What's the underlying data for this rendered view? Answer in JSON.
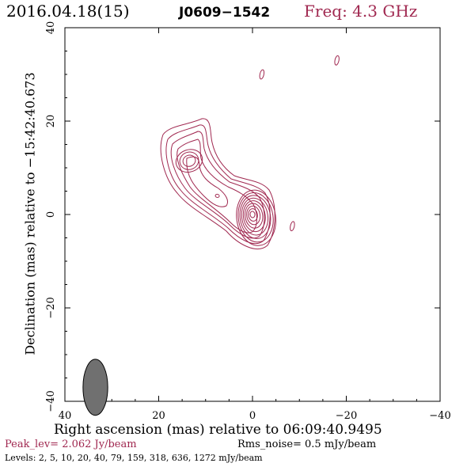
{
  "header": {
    "date": "2016.04.18(15)",
    "source": "J0609−1542",
    "freq": "Freq: 4.3 GHz"
  },
  "chart_data": {
    "type": "contour",
    "xlabel": "Right ascension (mas) relative to 06:09:40.9495",
    "ylabel": "Declination (mas) relative to −15:42:40.673",
    "xlim": [
      40,
      -40
    ],
    "ylim": [
      -40,
      40
    ],
    "xticks": [
      40,
      20,
      0,
      -20,
      -40
    ],
    "yticks": [
      -40,
      -20,
      0,
      20,
      40
    ],
    "x_tick_labels": [
      "40",
      "20",
      "0",
      "−20",
      "−40"
    ],
    "y_tick_labels": [
      "−40",
      "−20",
      "0",
      "20",
      "40"
    ],
    "contour_color": "#a02850",
    "core": {
      "x": 0,
      "y": 0
    },
    "components": [
      {
        "name": "core",
        "x": 0,
        "y": 0
      },
      {
        "name": "jet-knot",
        "x": 13.5,
        "y": 11.5
      },
      {
        "name": "jet-spot",
        "x": 7.5,
        "y": 4
      },
      {
        "name": "island-1",
        "x": -2,
        "y": 30
      },
      {
        "name": "island-2",
        "x": -18,
        "y": 33
      },
      {
        "name": "island-3",
        "x": -8.5,
        "y": -2.5
      }
    ],
    "beam": {
      "x": 33.5,
      "y": -37,
      "major_mas": 5,
      "minor_mas": 2.2,
      "pa_deg": 0
    }
  },
  "footer": {
    "peak": "Peak_lev=  2.062 Jy/beam",
    "rms": "Rms_noise=  0.5 mJy/beam",
    "levels": "Levels:   2,   5,  10,  20,  40,  79, 159, 318, 636, 1272 mJy/beam"
  }
}
